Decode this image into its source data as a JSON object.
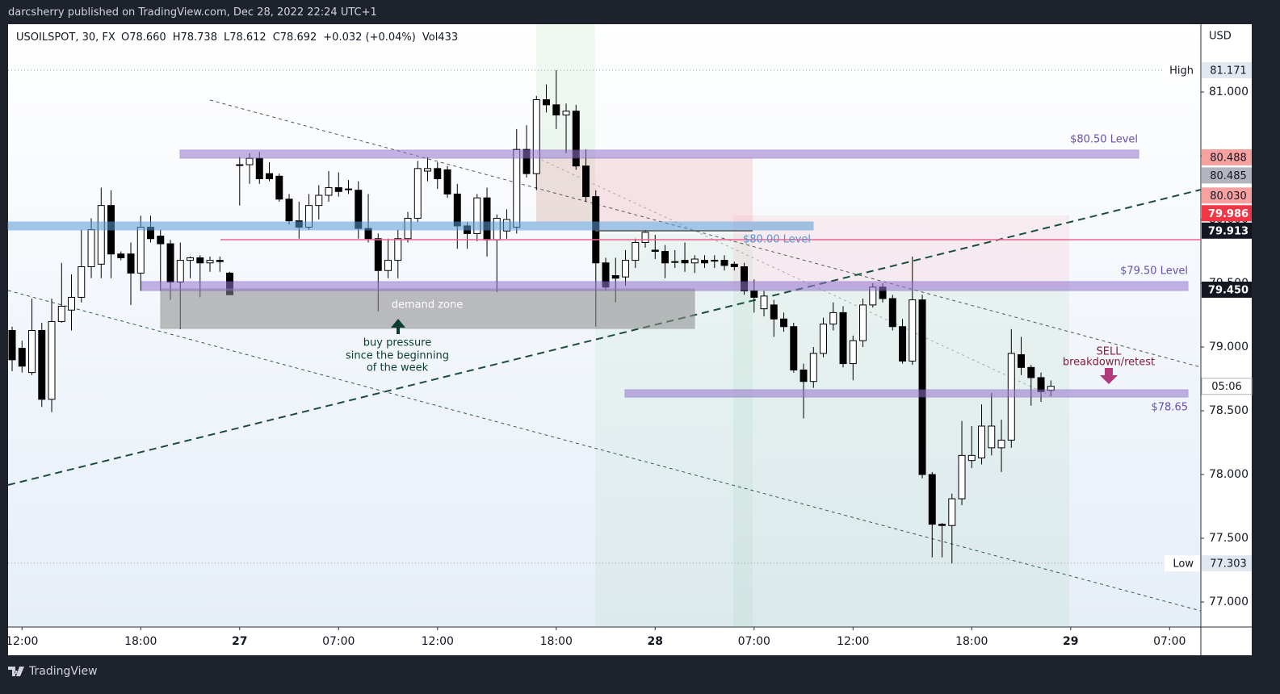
{
  "header": {
    "text": "darcsherry published on TradingView.com, Dec 28, 2022 22:24 UTC+1"
  },
  "footer": {
    "brand": "TradingView"
  },
  "annotations": [
    "$80.50 Level",
    "$80.00 Level",
    "$79.50 Level",
    "$78.65",
    "demand zone",
    "buy pressure",
    "since the beginning",
    "of the week",
    "SELL",
    "breakdown/retest"
  ],
  "chart_data": {
    "type": "candlestick",
    "legend": [
      "USOILSPOT, 30, FX",
      "O78.660",
      "H78.738",
      "L78.612",
      "C78.692",
      "+0.032 (+0.04%)",
      "Vol433"
    ],
    "currency": "USD",
    "countdown": "05:06",
    "xlim": [
      -0.41,
      120.16
    ],
    "xticks": [
      {
        "value": 1,
        "label": "12:00"
      },
      {
        "value": 13,
        "label": "18:00"
      },
      {
        "value": 23,
        "label": "27"
      },
      {
        "value": 33,
        "label": "07:00"
      },
      {
        "value": 43,
        "label": "12:00"
      },
      {
        "value": 55,
        "label": "18:00"
      },
      {
        "value": 65,
        "label": "28"
      },
      {
        "value": 75,
        "label": "07:00"
      },
      {
        "value": 85,
        "label": "12:00"
      },
      {
        "value": 97,
        "label": "18:00"
      },
      {
        "value": 107,
        "label": "29"
      },
      {
        "value": 117,
        "label": "07:00"
      }
    ],
    "ylim": [
      76.804,
      81.532
    ],
    "yticks": [
      {
        "value": 77,
        "label": "77.000"
      },
      {
        "value": 77.5,
        "label": "77.500"
      },
      {
        "value": 78,
        "label": "78.000"
      },
      {
        "value": 78.5,
        "label": "78.500"
      },
      {
        "value": 79,
        "label": "79.000"
      },
      {
        "value": 79.5,
        "label": "79.500"
      },
      {
        "value": 80,
        "label": "80.000"
      },
      {
        "value": 80.5,
        "label": "80.500"
      },
      {
        "value": 81,
        "label": "81.000"
      }
    ],
    "price_labels": [
      {
        "value": 81.171,
        "label": "81.171",
        "tag": "High",
        "color": "#e3e8f0"
      },
      {
        "value": 80.488,
        "label": "80.488",
        "color": "#f7a1a1"
      },
      {
        "value": 80.485,
        "label": "80.485",
        "color": "#b2b5be"
      },
      {
        "value": 80.03,
        "label": "80.030",
        "color": "#f7a1a1"
      },
      {
        "value": 79.986,
        "label": "79.986",
        "color": "#f23645"
      },
      {
        "value": 79.913,
        "label": "79.913",
        "color": "#131722"
      },
      {
        "value": 79.45,
        "label": "79.450",
        "color": "#131722"
      },
      {
        "value": 77.303,
        "label": "77.303",
        "tag": "Low",
        "color": "#e3e8f0"
      }
    ],
    "x": [
      0,
      1,
      2,
      3,
      4,
      5,
      6,
      7,
      8,
      9,
      10,
      11,
      12,
      13,
      14,
      15,
      16,
      17,
      18,
      19,
      20,
      21,
      22,
      23,
      24,
      25,
      26,
      27,
      28,
      29,
      30,
      31,
      32,
      33,
      34,
      35,
      36,
      37,
      38,
      39,
      40,
      41,
      42,
      43,
      44,
      45,
      46,
      47,
      48,
      49,
      50,
      51,
      52,
      53,
      54,
      55,
      56,
      57,
      58,
      59,
      60,
      61,
      62,
      63,
      64,
      65,
      66,
      67,
      68,
      69,
      70,
      71,
      72,
      73,
      74,
      75,
      76,
      77,
      78,
      79,
      80,
      81,
      82,
      83,
      84,
      85,
      86,
      87,
      88,
      89,
      90,
      91,
      92,
      93,
      94,
      95,
      96,
      97,
      98,
      99,
      100,
      101,
      102,
      103,
      104,
      105
    ],
    "open": [
      79.13,
      78.99,
      78.8,
      79.13,
      78.59,
      79.2,
      79.29,
      79.39,
      79.63,
      79.65,
      80.11,
      79.73,
      79.73,
      79.58,
      79.94,
      79.87,
      79.81,
      79.51,
      79.68,
      79.7,
      79.66,
      79.68,
      79.58,
      80.43,
      80.43,
      80.48,
      80.36,
      80.34,
      80.16,
      79.99,
      79.94,
      80.11,
      80.19,
      80.25,
      80.24,
      80.23,
      79.93,
      79.85,
      79.6,
      79.68,
      79.85,
      80.01,
      80.38,
      80.4,
      80.39,
      80.2,
      79.95,
      79.89,
      80.17,
      79.84,
      79.91,
      79.94,
      80.55,
      80.36,
      80.94,
      80.9,
      80.82,
      80.85,
      80.42,
      80.18,
      79.66,
      79.56,
      79.55,
      79.68,
      79.82,
      79.76,
      79.75,
      79.67,
      79.68,
      79.66,
      79.68,
      79.68,
      79.68,
      79.65,
      79.63,
      79.44,
      79.3,
      79.33,
      79.22,
      79.16,
      78.82,
      78.73,
      78.95,
      79.18,
      79.27,
      78.87,
      79.05,
      79.33,
      79.47,
      79.38,
      79.16,
      78.89,
      79.37,
      78.0,
      77.61,
      77.6,
      77.81,
      78.11,
      78.13,
      78.21,
      78.21,
      78.27,
      78.94,
      78.84,
      78.76,
      78.66
    ],
    "high": [
      79.16,
      79.05,
      79.38,
      79.19,
      79.38,
      79.66,
      79.57,
      79.92,
      80.01,
      80.25,
      80.23,
      79.75,
      79.82,
      80.03,
      80.03,
      79.92,
      79.84,
      79.82,
      79.71,
      79.72,
      79.71,
      79.71,
      79.59,
      80.49,
      80.52,
      80.53,
      80.45,
      80.36,
      80.2,
      80.14,
      80.2,
      80.27,
      80.38,
      80.37,
      80.31,
      80.3,
      80.2,
      79.89,
      79.85,
      79.92,
      80.06,
      80.46,
      80.49,
      80.45,
      80.42,
      80.28,
      79.98,
      80.2,
      80.25,
      80.04,
      80.08,
      80.71,
      80.74,
      80.97,
      81.06,
      81.171,
      80.91,
      80.9,
      80.55,
      80.23,
      79.7,
      79.7,
      79.76,
      79.85,
      79.92,
      79.88,
      79.8,
      79.76,
      79.82,
      79.72,
      79.72,
      79.72,
      79.72,
      79.67,
      79.66,
      79.53,
      79.44,
      79.37,
      79.27,
      79.19,
      78.87,
      79.0,
      79.23,
      79.35,
      79.32,
      79.09,
      79.38,
      79.5,
      79.5,
      79.41,
      79.22,
      79.71,
      79.41,
      78.02,
      77.62,
      77.85,
      78.42,
      78.38,
      78.55,
      78.64,
      78.43,
      79.14,
      79.08,
      78.86,
      78.8,
      78.738
    ],
    "low": [
      78.81,
      78.8,
      78.78,
      78.53,
      78.49,
      79.19,
      79.13,
      79.35,
      79.54,
      79.54,
      79.54,
      79.68,
      79.33,
      79.44,
      79.82,
      79.44,
      79.37,
      79.14,
      79.54,
      79.39,
      79.59,
      79.59,
      79.41,
      80.11,
      80.28,
      80.28,
      80.3,
      80.14,
      79.96,
      79.85,
      79.92,
      80.0,
      80.14,
      80.18,
      80.2,
      79.85,
      79.82,
      79.28,
      79.54,
      79.54,
      79.82,
      79.98,
      80.3,
      80.24,
      80.17,
      79.77,
      79.77,
      79.83,
      79.71,
      79.43,
      79.85,
      79.89,
      80.33,
      80.23,
      80.84,
      80.71,
      80.52,
      80.39,
      80.14,
      79.16,
      79.44,
      79.35,
      79.48,
      79.62,
      79.78,
      79.69,
      79.54,
      79.62,
      79.59,
      79.58,
      79.62,
      79.62,
      79.6,
      79.6,
      79.41,
      79.27,
      79.24,
      79.08,
      79.12,
      78.8,
      78.44,
      78.68,
      78.92,
      79.13,
      78.84,
      78.74,
      79.0,
      79.31,
      79.35,
      79.13,
      78.87,
      78.86,
      77.97,
      77.35,
      77.35,
      77.303,
      77.76,
      78.05,
      78.08,
      78.15,
      78.02,
      78.21,
      78.78,
      78.54,
      78.57,
      78.612
    ],
    "close": [
      78.9,
      78.85,
      79.13,
      78.59,
      79.2,
      79.32,
      79.39,
      79.63,
      79.92,
      80.11,
      79.73,
      79.7,
      79.58,
      79.94,
      79.85,
      79.81,
      79.51,
      79.68,
      79.7,
      79.66,
      79.68,
      79.67,
      79.41,
      80.43,
      80.48,
      80.32,
      80.32,
      80.16,
      79.99,
      79.94,
      80.11,
      80.19,
      80.25,
      80.22,
      80.24,
      79.93,
      79.85,
      79.6,
      79.68,
      79.85,
      80.01,
      80.4,
      80.4,
      80.32,
      80.2,
      79.95,
      79.89,
      80.17,
      79.84,
      80.01,
      80.0,
      80.55,
      80.36,
      80.94,
      80.9,
      80.82,
      80.85,
      80.42,
      80.18,
      79.66,
      79.47,
      79.54,
      79.68,
      79.82,
      79.9,
      79.75,
      79.66,
      79.67,
      79.66,
      79.69,
      79.66,
      79.68,
      79.64,
      79.63,
      79.44,
      79.39,
      79.4,
      79.22,
      79.16,
      78.82,
      78.73,
      78.95,
      79.18,
      79.27,
      78.87,
      79.05,
      79.33,
      79.47,
      79.38,
      79.16,
      78.89,
      79.37,
      78.0,
      77.61,
      77.6,
      77.81,
      78.15,
      78.15,
      78.38,
      78.38,
      78.27,
      78.95,
      78.84,
      78.76,
      78.65,
      78.692
    ]
  }
}
